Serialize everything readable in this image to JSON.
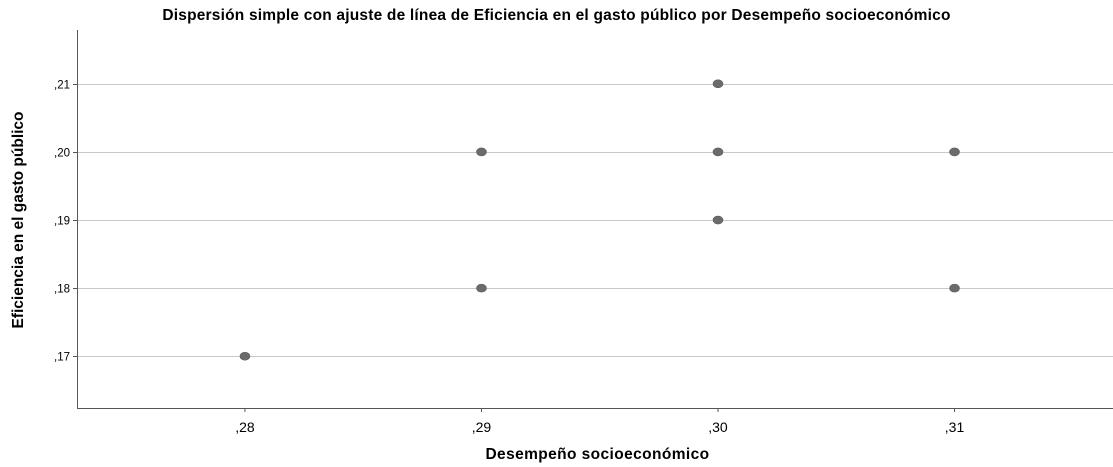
{
  "chart_data": {
    "type": "scatter",
    "title": "Dispersión simple con ajuste de línea de Eficiencia en el gasto público por Desempeño socioeconómico",
    "xlabel": "Desempeño socioeconómico",
    "ylabel": "Eficiencia en el gasto público",
    "x_ticks": [
      {
        "value": 0.28,
        "label": ",28"
      },
      {
        "value": 0.29,
        "label": ",29"
      },
      {
        "value": 0.3,
        "label": ",30"
      },
      {
        "value": 0.31,
        "label": ",31"
      }
    ],
    "y_ticks": [
      {
        "value": 0.17,
        "label": ",17"
      },
      {
        "value": 0.18,
        "label": ",18"
      },
      {
        "value": 0.19,
        "label": ",19"
      },
      {
        "value": 0.2,
        "label": ",20"
      },
      {
        "value": 0.21,
        "label": ",21"
      }
    ],
    "xlim": [
      0.2729,
      0.3167
    ],
    "ylim": [
      0.1624,
      0.2179
    ],
    "grid": "horizontal",
    "points": [
      {
        "x": 0.28,
        "y": 0.17
      },
      {
        "x": 0.29,
        "y": 0.2
      },
      {
        "x": 0.29,
        "y": 0.18
      },
      {
        "x": 0.3,
        "y": 0.21
      },
      {
        "x": 0.3,
        "y": 0.2
      },
      {
        "x": 0.3,
        "y": 0.19
      },
      {
        "x": 0.31,
        "y": 0.2
      },
      {
        "x": 0.31,
        "y": 0.18
      }
    ],
    "colors": {
      "point": "#6b6b6b",
      "gridline": "#c8c8c8",
      "axis": "#555555"
    }
  }
}
